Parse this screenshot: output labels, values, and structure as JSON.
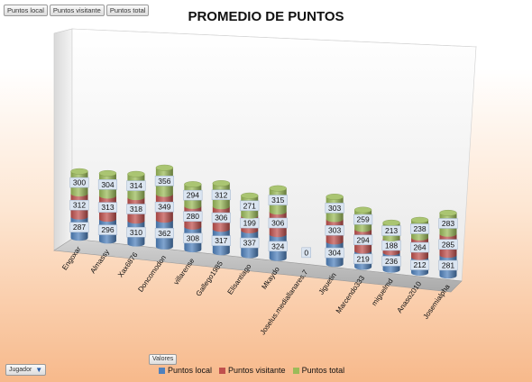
{
  "field_buttons": [
    "Puntos local",
    "Puntos visitante",
    "Puntos total"
  ],
  "values_button": "Valores",
  "filter_button": {
    "label": "Jugador",
    "icon": "filter-icon"
  },
  "chart_data": {
    "type": "bar",
    "stacked": true,
    "style": "3d-cylinder",
    "title": "PROMEDIO DE PUNTOS",
    "xlabel": "",
    "ylabel": "",
    "legend_position": "bottom",
    "categories": [
      "Engoxar",
      "Almassy",
      "Xax6876",
      "Doncomodon",
      "villarense",
      "Gallego1985",
      "Elisantiago",
      "Mkaydo",
      "Joselus.mediallanares.7",
      "Jiguetin",
      "Marcendo333",
      "miguelmd",
      "Anaso2010",
      "Josemialpha"
    ],
    "series": [
      {
        "name": "Puntos local",
        "color": "#4f81bd",
        "values": [
          287,
          296,
          310,
          362,
          308,
          317,
          337,
          324,
          0,
          304,
          219,
          236,
          212,
          281
        ]
      },
      {
        "name": "Puntos visitante",
        "color": "#c0504d",
        "values": [
          312,
          313,
          318,
          349,
          280,
          306,
          199,
          306,
          0,
          303,
          294,
          188,
          264,
          285
        ]
      },
      {
        "name": "Puntos total",
        "color": "#9bbb59",
        "values": [
          300,
          304,
          314,
          356,
          294,
          312,
          271,
          315,
          0,
          303,
          259,
          213,
          238,
          283
        ]
      }
    ]
  }
}
